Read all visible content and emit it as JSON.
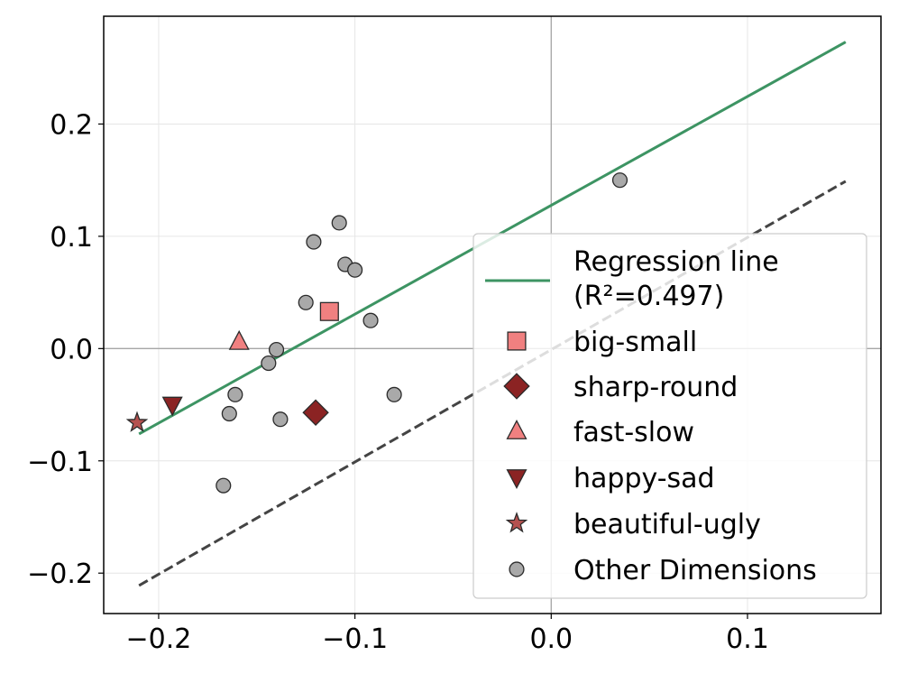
{
  "chart_data": {
    "type": "scatter",
    "title": "",
    "xlabel": "",
    "ylabel": "",
    "xlim": [
      -0.228,
      0.168
    ],
    "ylim": [
      -0.236,
      0.296
    ],
    "grid": true,
    "x_ticks": [
      -0.2,
      -0.1,
      0.0,
      0.1
    ],
    "x_tick_labels": [
      "−0.2",
      "−0.1",
      "0.0",
      "0.1"
    ],
    "y_ticks": [
      -0.2,
      -0.1,
      0.0,
      0.1,
      0.2
    ],
    "y_tick_labels": [
      "−0.2",
      "−0.1",
      "0.0",
      "0.1",
      "0.2"
    ],
    "zero_lines": true,
    "reference_line": {
      "style": "dashed",
      "color": "#444444",
      "points": [
        [
          -0.21,
          -0.211
        ],
        [
          0.15,
          0.149
        ]
      ]
    },
    "regression_line": {
      "label_line1": "Regression line",
      "label_line2": "(R²=0.497)",
      "color": "#3d9463",
      "points": [
        [
          -0.21,
          -0.076
        ],
        [
          0.15,
          0.273
        ]
      ]
    },
    "series": [
      {
        "name": "big-small",
        "marker": "square",
        "color": "#f08080",
        "points": [
          [
            -0.113,
            0.033
          ]
        ]
      },
      {
        "name": "sharp-round",
        "marker": "diamond",
        "color": "#8b2323",
        "points": [
          [
            -0.12,
            -0.057
          ]
        ]
      },
      {
        "name": "fast-slow",
        "marker": "triangle-up",
        "color": "#f08080",
        "points": [
          [
            -0.159,
            0.006
          ]
        ]
      },
      {
        "name": "happy-sad",
        "marker": "triangle-down",
        "color": "#8b2323",
        "points": [
          [
            -0.193,
            -0.05
          ]
        ]
      },
      {
        "name": "beautiful-ugly",
        "marker": "star",
        "color": "#b5514f",
        "points": [
          [
            -0.211,
            -0.066
          ]
        ]
      },
      {
        "name": "Other Dimensions",
        "marker": "circle",
        "color": "#a9a9a9",
        "points": [
          [
            0.035,
            0.15
          ],
          [
            -0.108,
            0.112
          ],
          [
            -0.121,
            0.095
          ],
          [
            -0.105,
            0.075
          ],
          [
            -0.1,
            0.07
          ],
          [
            -0.125,
            0.041
          ],
          [
            -0.092,
            0.025
          ],
          [
            -0.14,
            -0.001
          ],
          [
            -0.144,
            -0.013
          ],
          [
            -0.161,
            -0.041
          ],
          [
            -0.08,
            -0.041
          ],
          [
            -0.164,
            -0.058
          ],
          [
            -0.138,
            -0.063
          ],
          [
            -0.167,
            -0.122
          ]
        ]
      }
    ],
    "legend": {
      "position": "bottom-right"
    }
  }
}
